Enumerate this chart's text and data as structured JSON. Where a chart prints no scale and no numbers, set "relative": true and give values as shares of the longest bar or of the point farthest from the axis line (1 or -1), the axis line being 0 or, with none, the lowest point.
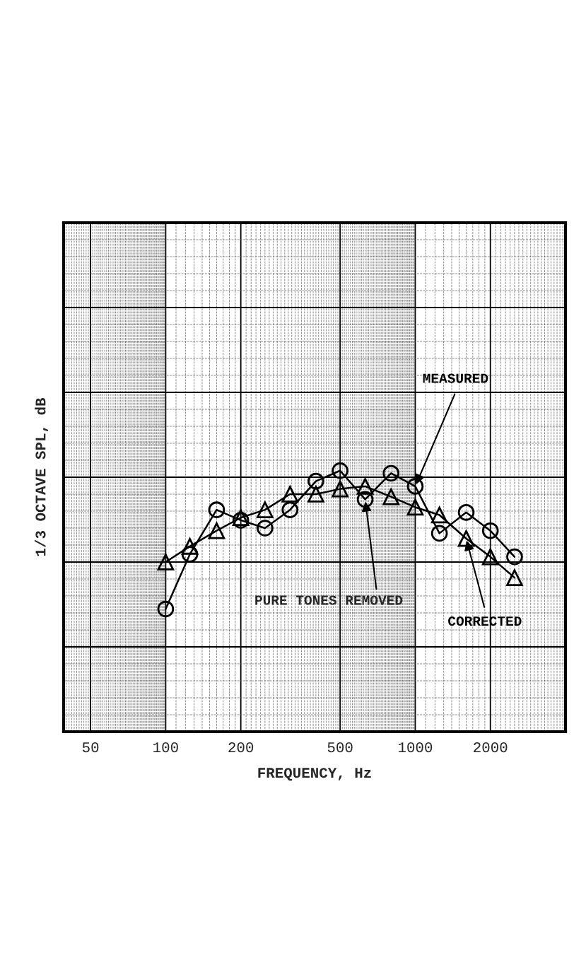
{
  "chart_data": {
    "type": "line",
    "xlabel": "FREQUENCY, Hz",
    "ylabel": "1/3 OCTAVE SPL, dB",
    "log": "x",
    "relative": true,
    "x": [
      100,
      125,
      160,
      200,
      250,
      315,
      400,
      500,
      630,
      800,
      1000,
      1250,
      1600,
      2000,
      2500
    ],
    "xlim": [
      39,
      4000
    ],
    "xticks": [
      50,
      100,
      200,
      500,
      1000,
      2000
    ],
    "tick_labels": "x",
    "grid": true,
    "series": [
      {
        "name": "MEASURED",
        "color": "#000000",
        "marker": "circle",
        "values": [
          0.47,
          0.68,
          0.85,
          0.81,
          0.78,
          0.85,
          0.96,
          1.0,
          0.89,
          0.99,
          0.94,
          0.76,
          0.84,
          0.77,
          0.67
        ]
      },
      {
        "name": "CORRECTED",
        "color": "#000000",
        "marker": "triangle",
        "values": [
          0.65,
          0.71,
          0.77,
          0.82,
          0.85,
          0.91,
          0.91,
          0.93,
          0.94,
          0.9,
          0.86,
          0.83,
          0.74,
          0.67,
          0.59
        ]
      }
    ],
    "annotations": [
      {
        "text": "PURE TONES REMOVED",
        "x": 630,
        "y": 0.89
      }
    ]
  }
}
